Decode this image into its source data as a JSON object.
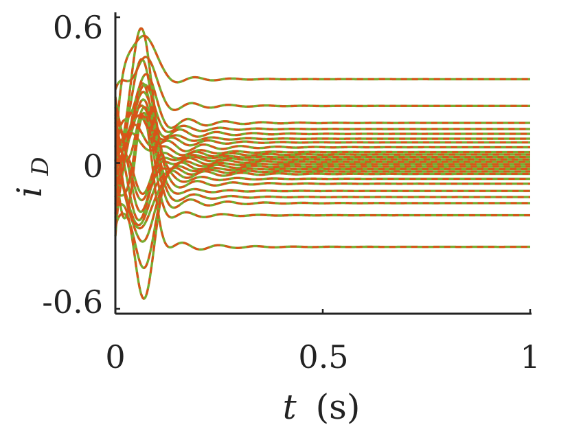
{
  "chart_data": {
    "type": "line",
    "xlabel_var": "t",
    "xlabel_unit": "(s)",
    "ylabel_main": "i",
    "ylabel_sub": "D",
    "xlim": [
      0,
      1
    ],
    "ylim": [
      -0.62,
      0.62
    ],
    "xticks": [
      0,
      0.5,
      1
    ],
    "xtick_labels": [
      "0",
      "0.5",
      "1"
    ],
    "yticks": [
      -0.6,
      0,
      0.6
    ],
    "ytick_labels": [
      "-0.6",
      "0",
      "0.6"
    ],
    "grid": false,
    "colors": {
      "solid": "#77ac30",
      "dashed": "#d95319",
      "axis": "#222222"
    },
    "steady_values": [
      0.345,
      0.235,
      0.165,
      0.14,
      0.12,
      0.1,
      0.085,
      0.065,
      0.045,
      0.035,
      0.025,
      0.015,
      0.005,
      -0.005,
      -0.015,
      -0.025,
      -0.035,
      -0.045,
      -0.065,
      -0.085,
      -0.115,
      -0.14,
      -0.165,
      -0.215,
      -0.345
    ],
    "peak_values": [
      0.56,
      0.46,
      0.36,
      0.3,
      0.25,
      0.2,
      0.16,
      0.12,
      0.09,
      -0.09,
      -0.12,
      -0.16,
      -0.2,
      -0.25,
      -0.3,
      -0.36,
      -0.46,
      -0.56
    ]
  }
}
